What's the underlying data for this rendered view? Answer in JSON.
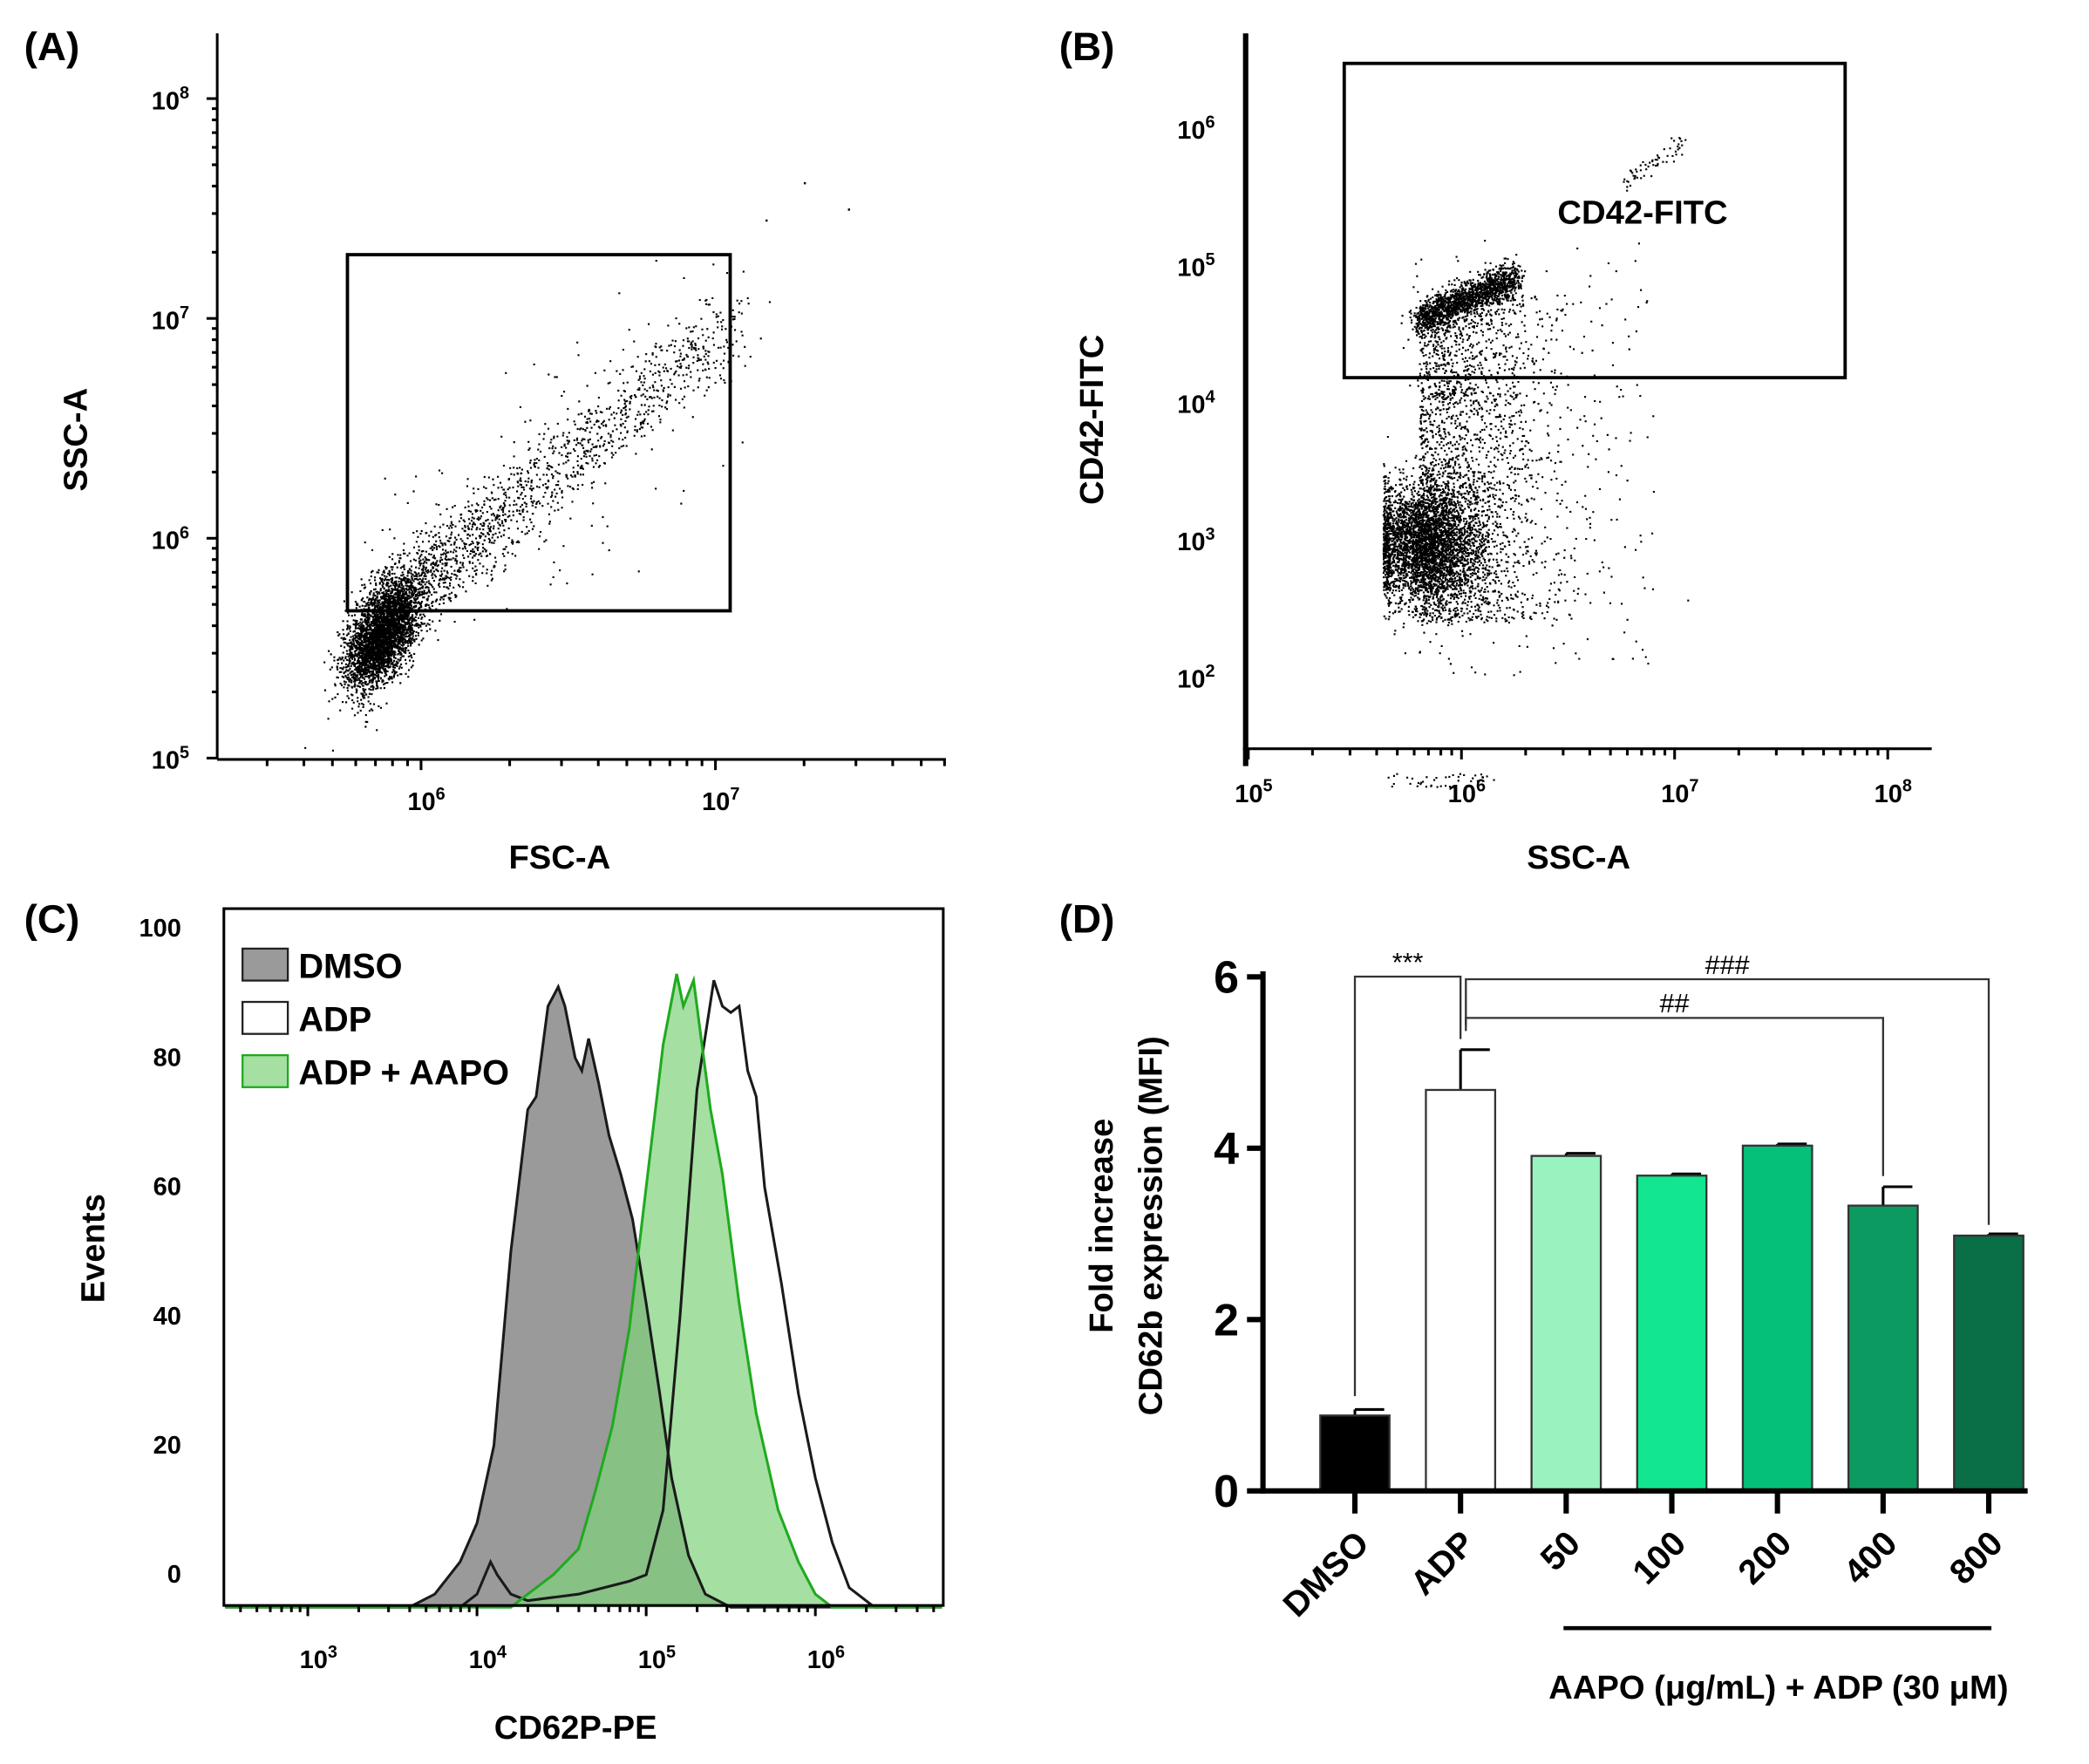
{
  "chart_data": [
    {
      "panel": "(A)",
      "type": "scatter",
      "xlabel": "FSC-A",
      "ylabel": "SSC-A",
      "xscale": "log",
      "yscale": "log",
      "xticks": [
        {
          "base": "10",
          "exp": "6"
        },
        {
          "base": "10",
          "exp": "7"
        }
      ],
      "yticks": [
        {
          "base": "10",
          "exp": "5"
        },
        {
          "base": "10",
          "exp": "6"
        },
        {
          "base": "10",
          "exp": "7"
        },
        {
          "base": "10",
          "exp": "8"
        }
      ],
      "gate": {
        "x": [
          5.75,
          7.05
        ],
        "y": [
          5.67,
          7.29
        ]
      }
    },
    {
      "panel": "(B)",
      "type": "scatter",
      "xlabel": "SSC-A",
      "ylabel": "CD42-FITC",
      "xscale": "log",
      "yscale": "log",
      "xticks": [
        {
          "base": "10",
          "exp": "5"
        },
        {
          "base": "10",
          "exp": "6"
        },
        {
          "base": "10",
          "exp": "7"
        },
        {
          "base": "10",
          "exp": "8"
        }
      ],
      "yticks": [
        {
          "base": "10",
          "exp": "2"
        },
        {
          "base": "10",
          "exp": "3"
        },
        {
          "base": "10",
          "exp": "4"
        },
        {
          "base": "10",
          "exp": "5"
        },
        {
          "base": "10",
          "exp": "6"
        }
      ],
      "gate": {
        "label": "CD42-FITC",
        "x": [
          5.45,
          7.8
        ],
        "y": [
          4.18,
          6.47
        ]
      }
    },
    {
      "panel": "(C)",
      "type": "area",
      "xlabel": "CD62P-PE",
      "ylabel": "Events",
      "xscale": "log",
      "yticks": [
        "0",
        "20",
        "40",
        "60",
        "80",
        "100"
      ],
      "xticks": [
        {
          "base": "10",
          "exp": "3"
        },
        {
          "base": "10",
          "exp": "4"
        },
        {
          "base": "10",
          "exp": "5"
        },
        {
          "base": "10",
          "exp": "6"
        }
      ],
      "legend": [
        "DMSO",
        "ADP",
        "ADP + AAPO"
      ],
      "series": [
        {
          "name": "DMSO",
          "fill": "#9a9a9a",
          "stroke": "#1a1a1a",
          "points": [
            [
              3.6,
              -5
            ],
            [
              3.75,
              -3
            ],
            [
              3.9,
              2
            ],
            [
              4.0,
              8
            ],
            [
              4.1,
              20
            ],
            [
              4.2,
              50
            ],
            [
              4.3,
              72
            ],
            [
              4.35,
              74
            ],
            [
              4.42,
              88
            ],
            [
              4.48,
              91
            ],
            [
              4.52,
              88
            ],
            [
              4.58,
              80
            ],
            [
              4.62,
              78
            ],
            [
              4.66,
              83
            ],
            [
              4.72,
              76
            ],
            [
              4.78,
              68
            ],
            [
              4.85,
              62
            ],
            [
              4.92,
              55
            ],
            [
              5.0,
              42
            ],
            [
              5.08,
              28
            ],
            [
              5.15,
              15
            ],
            [
              5.25,
              3
            ],
            [
              5.35,
              -3
            ],
            [
              5.5,
              -5
            ]
          ]
        },
        {
          "name": "ADP",
          "fill": "#ffffff",
          "stroke": "#1a1a1a",
          "points": [
            [
              3.9,
              -5
            ],
            [
              4.0,
              -3
            ],
            [
              4.08,
              2
            ],
            [
              4.12,
              0
            ],
            [
              4.2,
              -3
            ],
            [
              4.3,
              -4
            ],
            [
              4.6,
              -3
            ],
            [
              4.9,
              -1
            ],
            [
              5.0,
              0
            ],
            [
              5.1,
              10
            ],
            [
              5.2,
              40
            ],
            [
              5.3,
              75
            ],
            [
              5.4,
              92
            ],
            [
              5.45,
              88
            ],
            [
              5.5,
              87
            ],
            [
              5.55,
              88
            ],
            [
              5.6,
              78
            ],
            [
              5.65,
              74
            ],
            [
              5.7,
              60
            ],
            [
              5.8,
              45
            ],
            [
              5.9,
              28
            ],
            [
              6.0,
              15
            ],
            [
              6.1,
              5
            ],
            [
              6.2,
              -2
            ],
            [
              6.35,
              -5
            ]
          ]
        },
        {
          "name": "ADP + AAPO",
          "fill": "#7fd27a",
          "stroke": "#1faa1f",
          "points": [
            [
              4.2,
              -5
            ],
            [
              4.3,
              -3
            ],
            [
              4.45,
              0
            ],
            [
              4.6,
              4
            ],
            [
              4.7,
              13
            ],
            [
              4.8,
              23
            ],
            [
              4.9,
              38
            ],
            [
              5.0,
              60
            ],
            [
              5.1,
              82
            ],
            [
              5.18,
              93
            ],
            [
              5.22,
              88
            ],
            [
              5.28,
              92
            ],
            [
              5.33,
              82
            ],
            [
              5.38,
              72
            ],
            [
              5.45,
              62
            ],
            [
              5.55,
              42
            ],
            [
              5.65,
              25
            ],
            [
              5.78,
              10
            ],
            [
              5.9,
              2
            ],
            [
              6.0,
              -3
            ],
            [
              6.1,
              -5
            ]
          ]
        }
      ]
    },
    {
      "panel": "(D)",
      "type": "bar",
      "ylabel": [
        "Fold increase",
        "CD62b expression (MFI)"
      ],
      "ylim": [
        0,
        6
      ],
      "yticks": [
        "0",
        "2",
        "4",
        "6"
      ],
      "categories": [
        "DMSO",
        "ADP",
        "50",
        "100",
        "200",
        "400",
        "800"
      ],
      "values": [
        0.88,
        4.68,
        3.91,
        3.68,
        4.03,
        3.33,
        2.98
      ],
      "errors": [
        0.07,
        0.47,
        0.03,
        0.02,
        0.02,
        0.22,
        0.02
      ],
      "colors": [
        "#000000",
        "#ffffff",
        "#99f3bf",
        "#12e690",
        "#05c078",
        "#0d9a60",
        "#0a6e47"
      ],
      "group_label": "AAPO (μg/mL) + ADP (30 μM)",
      "annotations": [
        {
          "text": "***",
          "from": 0,
          "to": 1
        },
        {
          "text": "###",
          "from": 1,
          "to": 6
        },
        {
          "text": "##",
          "from": 1,
          "to": 5
        }
      ]
    }
  ]
}
